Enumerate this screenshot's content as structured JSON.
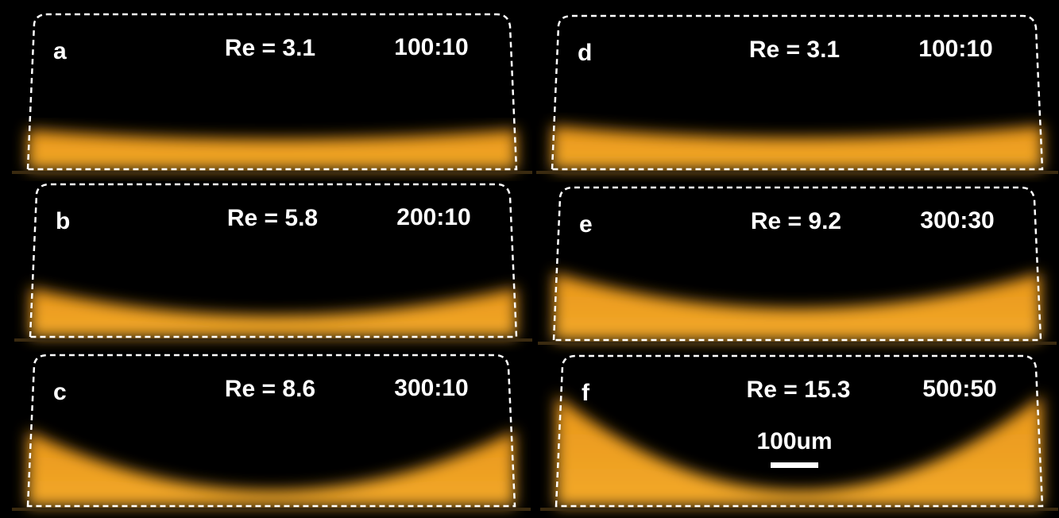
{
  "panels": [
    {
      "label": "a",
      "re": "Re = 3.1",
      "ratio": "100:10"
    },
    {
      "label": "b",
      "re": "Re = 5.8",
      "ratio": "200:10"
    },
    {
      "label": "c",
      "re": "Re = 8.6",
      "ratio": "300:10"
    },
    {
      "label": "d",
      "re": "Re = 3.1",
      "ratio": "100:10"
    },
    {
      "label": "e",
      "re": "Re = 9.2",
      "ratio": "300:30"
    },
    {
      "label": "f",
      "re": "Re = 15.3",
      "ratio": "500:50"
    }
  ],
  "scale_bar": {
    "label": "100um"
  }
}
